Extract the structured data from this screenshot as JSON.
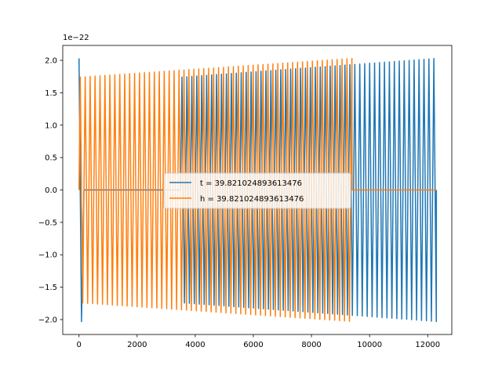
{
  "chart_data": {
    "type": "line",
    "title": "",
    "xlabel": "",
    "ylabel": "",
    "xlim": [
      -560,
      12830
    ],
    "ylim": [
      -2.23,
      2.23
    ],
    "y_multiplier_label": "1e−22",
    "x_ticks": [
      0,
      2000,
      4000,
      6000,
      8000,
      10000,
      12000
    ],
    "x_tick_labels": [
      "0",
      "2000",
      "4000",
      "6000",
      "8000",
      "10000",
      "12000"
    ],
    "y_ticks": [
      -2.0,
      -1.5,
      -1.0,
      -0.5,
      0.0,
      0.5,
      1.0,
      1.5,
      2.0
    ],
    "y_tick_labels": [
      "−2.0",
      "−1.5",
      "−1.0",
      "−0.5",
      "0.0",
      "0.5",
      "1.0",
      "1.5",
      "2.0"
    ],
    "grid": false,
    "legend_position": "center",
    "series": [
      {
        "name": "t = 39.821024893613476",
        "color": "#1f77b4",
        "signal": "oscillation",
        "x_start": 0,
        "x_end": 12300,
        "zero_segment_x": [
          0,
          3500
        ],
        "oscillation_x": [
          3500,
          12300
        ],
        "start_amplitude": 2.03,
        "oscillation_amplitude": [
          1.74,
          2.03
        ],
        "period": 170
      },
      {
        "name": "h = 39.821024893613476",
        "color": "#ff7f0e",
        "signal": "oscillation",
        "x_start": 0,
        "x_end": 12300,
        "oscillation_x": [
          0,
          9400
        ],
        "oscillation_amplitude": [
          1.74,
          2.03
        ],
        "zero_segment_x": [
          9400,
          12300
        ],
        "period": 170
      }
    ]
  }
}
